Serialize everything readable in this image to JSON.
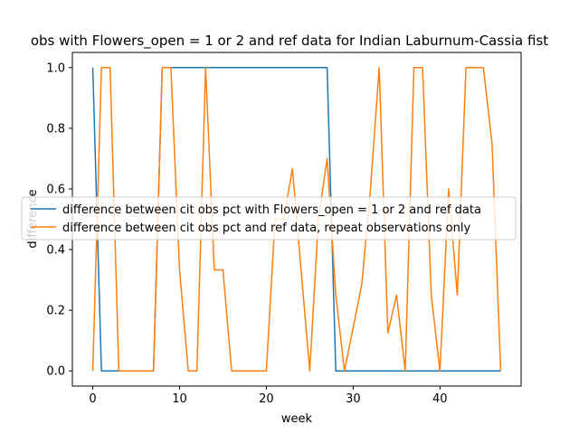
{
  "chart_data": {
    "type": "line",
    "title": "obs with Flowers_open = 1 or 2 and ref data for Indian Laburnum-Cassia fist",
    "xlabel": "week",
    "ylabel": "difference",
    "xlim": [
      -2.35,
      49.35
    ],
    "ylim": [
      -0.05,
      1.05
    ],
    "xticks": [
      0,
      10,
      20,
      30,
      40
    ],
    "yticks": [
      0.0,
      0.2,
      0.4,
      0.6,
      0.8,
      1.0
    ],
    "xtick_labels": [
      "0",
      "10",
      "20",
      "30",
      "40"
    ],
    "ytick_labels": [
      "0.0",
      "0.2",
      "0.4",
      "0.6",
      "0.8",
      "1.0"
    ],
    "legend_position": "center-left",
    "grid": false,
    "series": [
      {
        "name": "difference between cit obs pct with Flowers_open = 1 or 2 and ref data",
        "color": "#1f77b4",
        "x": [
          0,
          1,
          2,
          3,
          4,
          5,
          6,
          7,
          8,
          9,
          10,
          11,
          12,
          13,
          14,
          15,
          16,
          17,
          18,
          19,
          20,
          21,
          22,
          23,
          24,
          25,
          26,
          27,
          28,
          29,
          30,
          31,
          32,
          33,
          34,
          35,
          36,
          37,
          38,
          39,
          40,
          41,
          42,
          43,
          44,
          45,
          46,
          47
        ],
        "y": [
          1,
          0,
          0,
          0,
          0,
          0,
          0,
          0,
          1,
          1,
          1,
          1,
          1,
          1,
          1,
          1,
          1,
          1,
          1,
          1,
          1,
          1,
          1,
          1,
          1,
          1,
          1,
          1,
          0,
          0,
          0,
          0,
          0,
          0,
          0,
          0,
          0,
          0,
          0,
          0,
          0,
          0,
          0,
          0,
          0,
          0,
          0,
          0
        ]
      },
      {
        "name": "difference between cit obs pct and ref data, repeat observations only",
        "color": "#ff7f0e",
        "x": [
          0,
          1,
          2,
          3,
          4,
          5,
          6,
          7,
          8,
          9,
          10,
          11,
          12,
          13,
          14,
          15,
          16,
          17,
          18,
          19,
          20,
          21,
          22,
          23,
          24,
          25,
          26,
          27,
          28,
          29,
          30,
          31,
          32,
          33,
          34,
          35,
          36,
          37,
          38,
          39,
          40,
          41,
          42,
          43,
          44,
          45,
          46,
          47
        ],
        "y": [
          0,
          1,
          1,
          0,
          0,
          0,
          0,
          0,
          1,
          1,
          0.333,
          0,
          0,
          1,
          0.333,
          0.333,
          0,
          0,
          0,
          0,
          0,
          0.5,
          0.5,
          0.667,
          0.333,
          0,
          0.5,
          0.7,
          0.25,
          0,
          0.143,
          0.286,
          0.6,
          1,
          0.125,
          0.25,
          0,
          1,
          1,
          0.25,
          0,
          0.6,
          0.25,
          1,
          1,
          1,
          0.75,
          0
        ]
      }
    ]
  }
}
